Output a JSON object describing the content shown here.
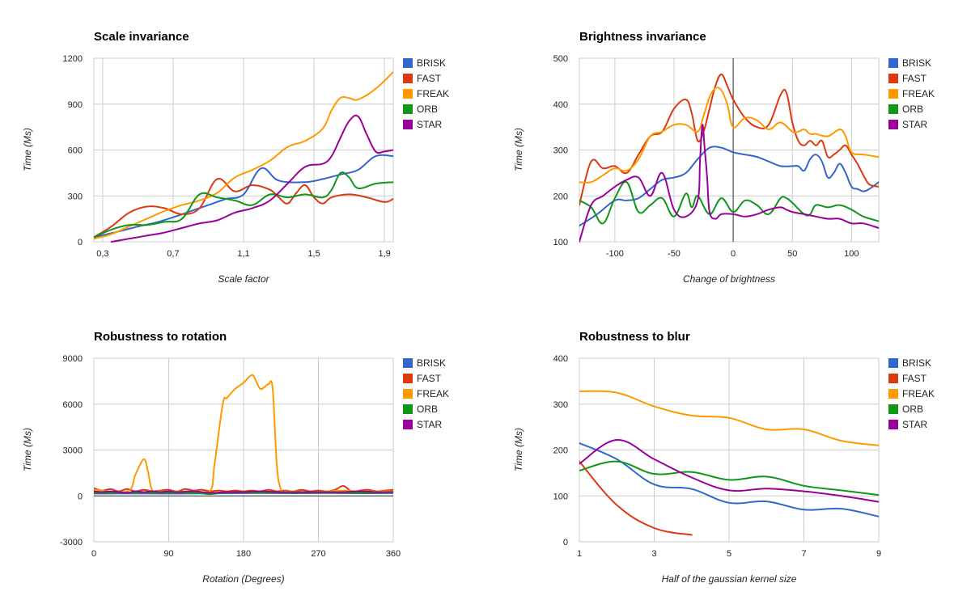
{
  "colors": {
    "BRISK": "#3366cc",
    "FAST": "#dc3912",
    "FREAK": "#ff9900",
    "ORB": "#109618",
    "STAR": "#990099"
  },
  "chart_data": [
    {
      "type": "line",
      "title": "Scale invariance",
      "xlabel": "Scale factor",
      "ylabel": "Time (Ms)",
      "xlim": [
        0.25,
        1.95
      ],
      "ylim": [
        0,
        1200
      ],
      "xticks": [
        0.3,
        0.7,
        1.1,
        1.5,
        1.9
      ],
      "xtick_labels": [
        "0,3",
        "0,7",
        "1,1",
        "1,5",
        "1,9"
      ],
      "yticks": [
        0,
        300,
        600,
        900,
        1200
      ],
      "ytick_labels": [
        "0",
        "300",
        "600",
        "900",
        "1200"
      ],
      "grid": true,
      "legend": "right",
      "series": [
        {
          "name": "BRISK",
          "x": [
            0.25,
            0.4,
            0.5,
            0.6,
            0.7,
            0.8,
            0.9,
            1.0,
            1.1,
            1.2,
            1.3,
            1.45,
            1.55,
            1.65,
            1.75,
            1.85,
            1.95
          ],
          "y": [
            30,
            70,
            100,
            125,
            160,
            200,
            240,
            280,
            310,
            480,
            400,
            390,
            410,
            440,
            470,
            560,
            560
          ]
        },
        {
          "name": "FAST",
          "x": [
            0.25,
            0.35,
            0.45,
            0.55,
            0.65,
            0.75,
            0.85,
            0.95,
            1.05,
            1.15,
            1.25,
            1.3,
            1.35,
            1.4,
            1.45,
            1.5,
            1.55,
            1.6,
            1.7,
            1.8,
            1.9,
            1.95
          ],
          "y": [
            30,
            100,
            190,
            230,
            220,
            180,
            220,
            410,
            330,
            370,
            340,
            290,
            250,
            320,
            370,
            290,
            250,
            290,
            310,
            290,
            260,
            280
          ]
        },
        {
          "name": "FREAK",
          "x": [
            0.25,
            0.35,
            0.45,
            0.55,
            0.65,
            0.75,
            0.85,
            0.95,
            1.05,
            1.15,
            1.25,
            1.35,
            1.45,
            1.55,
            1.6,
            1.65,
            1.7,
            1.75,
            1.85,
            1.95
          ],
          "y": [
            20,
            50,
            100,
            150,
            200,
            240,
            270,
            320,
            420,
            470,
            530,
            620,
            660,
            740,
            860,
            940,
            940,
            930,
            1000,
            1110
          ]
        },
        {
          "name": "ORB",
          "x": [
            0.25,
            0.35,
            0.45,
            0.55,
            0.65,
            0.75,
            0.85,
            0.95,
            1.05,
            1.15,
            1.25,
            1.35,
            1.45,
            1.55,
            1.6,
            1.65,
            1.7,
            1.75,
            1.85,
            1.95
          ],
          "y": [
            30,
            80,
            110,
            110,
            130,
            150,
            310,
            290,
            270,
            240,
            310,
            290,
            310,
            290,
            340,
            450,
            420,
            350,
            380,
            390
          ]
        },
        {
          "name": "STAR",
          "x": [
            0.35,
            0.45,
            0.55,
            0.65,
            0.75,
            0.85,
            0.95,
            1.05,
            1.15,
            1.25,
            1.35,
            1.45,
            1.55,
            1.6,
            1.65,
            1.7,
            1.75,
            1.8,
            1.85,
            1.9,
            1.95
          ],
          "y": [
            0,
            20,
            40,
            60,
            90,
            120,
            140,
            190,
            220,
            270,
            380,
            490,
            510,
            560,
            680,
            790,
            820,
            700,
            590,
            590,
            600
          ]
        }
      ]
    },
    {
      "type": "line",
      "title": "Brightness invariance",
      "xlabel": "Change of brightness",
      "ylabel": "Time (Ms)",
      "xlim": [
        -130,
        123
      ],
      "ylim": [
        100,
        500
      ],
      "xticks": [
        -100,
        -50,
        0,
        50,
        100
      ],
      "xtick_labels": [
        "-100",
        "-50",
        "0",
        "50",
        "100"
      ],
      "yticks": [
        100,
        200,
        300,
        400,
        500
      ],
      "ytick_labels": [
        "100",
        "200",
        "300",
        "400",
        "500"
      ],
      "grid": true,
      "legend": "right",
      "series": [
        {
          "name": "BRISK",
          "x": [
            -130,
            -115,
            -100,
            -90,
            -80,
            -70,
            -60,
            -50,
            -40,
            -30,
            -20,
            -10,
            0,
            10,
            20,
            30,
            40,
            50,
            55,
            60,
            65,
            70,
            75,
            80,
            85,
            90,
            95,
            100,
            105,
            110,
            115,
            123
          ],
          "y": [
            135,
            160,
            190,
            190,
            195,
            215,
            235,
            240,
            250,
            280,
            305,
            305,
            295,
            290,
            285,
            275,
            265,
            265,
            265,
            255,
            280,
            290,
            275,
            240,
            250,
            270,
            250,
            220,
            215,
            210,
            215,
            230
          ]
        },
        {
          "name": "FAST",
          "x": [
            -130,
            -120,
            -110,
            -100,
            -90,
            -80,
            -70,
            -60,
            -50,
            -40,
            -35,
            -30,
            -25,
            -20,
            -15,
            -10,
            -5,
            0,
            10,
            20,
            30,
            40,
            45,
            50,
            55,
            60,
            65,
            70,
            75,
            80,
            85,
            90,
            95,
            100,
            105,
            110,
            115,
            123
          ],
          "y": [
            180,
            275,
            260,
            265,
            250,
            290,
            330,
            340,
            390,
            410,
            380,
            320,
            340,
            390,
            440,
            465,
            440,
            410,
            370,
            350,
            355,
            420,
            425,
            360,
            320,
            310,
            320,
            310,
            320,
            285,
            290,
            300,
            310,
            290,
            270,
            245,
            225,
            220
          ]
        },
        {
          "name": "FREAK",
          "x": [
            -130,
            -120,
            -110,
            -100,
            -90,
            -80,
            -70,
            -60,
            -50,
            -40,
            -30,
            -25,
            -20,
            -15,
            -10,
            -5,
            0,
            10,
            20,
            30,
            40,
            50,
            55,
            60,
            65,
            70,
            80,
            90,
            95,
            100,
            110,
            123
          ],
          "y": [
            230,
            230,
            245,
            260,
            255,
            280,
            330,
            340,
            355,
            355,
            340,
            375,
            415,
            435,
            430,
            400,
            350,
            370,
            365,
            345,
            360,
            340,
            340,
            345,
            335,
            335,
            330,
            345,
            330,
            295,
            290,
            285
          ]
        },
        {
          "name": "ORB",
          "x": [
            -130,
            -120,
            -110,
            -100,
            -90,
            -80,
            -70,
            -60,
            -50,
            -40,
            -35,
            -30,
            -20,
            -10,
            0,
            10,
            20,
            30,
            40,
            45,
            50,
            60,
            65,
            70,
            80,
            90,
            100,
            110,
            123
          ],
          "y": [
            190,
            175,
            140,
            195,
            230,
            165,
            180,
            195,
            155,
            205,
            175,
            200,
            160,
            195,
            165,
            190,
            180,
            160,
            195,
            195,
            185,
            160,
            160,
            180,
            175,
            180,
            170,
            155,
            145
          ]
        },
        {
          "name": "STAR",
          "x": [
            -130,
            -120,
            -110,
            -100,
            -90,
            -80,
            -70,
            -60,
            -50,
            -40,
            -30,
            -28,
            -26,
            -24,
            -22,
            -20,
            -15,
            -10,
            0,
            10,
            20,
            30,
            40,
            45,
            50,
            60,
            70,
            80,
            90,
            100,
            110,
            123
          ],
          "y": [
            100,
            180,
            200,
            220,
            235,
            240,
            200,
            250,
            170,
            155,
            190,
            280,
            355,
            300,
            240,
            165,
            150,
            160,
            160,
            155,
            160,
            170,
            175,
            170,
            165,
            160,
            155,
            150,
            150,
            140,
            140,
            130
          ]
        }
      ]
    },
    {
      "type": "line",
      "title": "Robustness to rotation",
      "xlabel": "Rotation (Degrees)",
      "ylabel": "Time (Ms)",
      "xlim": [
        0,
        360
      ],
      "ylim": [
        -3000,
        9000
      ],
      "xticks": [
        0,
        90,
        180,
        270,
        360
      ],
      "xtick_labels": [
        "0",
        "90",
        "180",
        "270",
        "360"
      ],
      "yticks": [
        -3000,
        0,
        3000,
        6000,
        9000
      ],
      "ytick_labels": [
        "-3000",
        "0",
        "3000",
        "6000",
        "9000"
      ],
      "grid": true,
      "legend": "right",
      "series": [
        {
          "name": "BRISK",
          "x": [
            0,
            40,
            80,
            120,
            160,
            200,
            240,
            280,
            320,
            360
          ],
          "y": [
            150,
            160,
            150,
            160,
            170,
            180,
            170,
            180,
            170,
            180
          ]
        },
        {
          "name": "FAST",
          "x": [
            0,
            10,
            20,
            30,
            40,
            50,
            60,
            70,
            80,
            90,
            100,
            110,
            120,
            130,
            140,
            150,
            160,
            170,
            180,
            190,
            200,
            210,
            220,
            230,
            240,
            250,
            260,
            270,
            280,
            290,
            300,
            310,
            320,
            330,
            340,
            350,
            360
          ],
          "y": [
            500,
            350,
            450,
            300,
            450,
            300,
            400,
            300,
            350,
            400,
            300,
            450,
            350,
            400,
            300,
            350,
            300,
            350,
            300,
            350,
            300,
            400,
            300,
            350,
            300,
            400,
            300,
            350,
            300,
            400,
            650,
            300,
            350,
            400,
            300,
            350,
            400
          ]
        },
        {
          "name": "FREAK",
          "x": [
            0,
            40,
            50,
            60,
            65,
            70,
            80,
            120,
            140,
            145,
            155,
            160,
            170,
            180,
            190,
            195,
            200,
            205,
            210,
            215,
            220,
            225,
            230,
            240,
            260,
            280,
            300,
            320,
            360
          ],
          "y": [
            400,
            300,
            1400,
            2400,
            1600,
            400,
            300,
            300,
            350,
            2000,
            6000,
            6400,
            7000,
            7400,
            7900,
            7500,
            7000,
            7100,
            7300,
            7000,
            2000,
            400,
            300,
            300,
            250,
            300,
            350,
            300,
            300
          ]
        },
        {
          "name": "ORB",
          "x": [
            0,
            40,
            80,
            120,
            140,
            160,
            200,
            240,
            280,
            320,
            360
          ],
          "y": [
            200,
            220,
            210,
            200,
            120,
            210,
            220,
            200,
            210,
            200,
            210
          ]
        },
        {
          "name": "STAR",
          "x": [
            0,
            10,
            20,
            30,
            40,
            50,
            60,
            70,
            80,
            90,
            100,
            120,
            140,
            160,
            180,
            200,
            220,
            240,
            260,
            280,
            300,
            320,
            340,
            360
          ],
          "y": [
            300,
            250,
            300,
            250,
            200,
            300,
            250,
            300,
            250,
            300,
            250,
            300,
            200,
            250,
            250,
            300,
            250,
            250,
            250,
            250,
            250,
            300,
            250,
            250
          ]
        }
      ]
    },
    {
      "type": "line",
      "title": "Robustness to blur",
      "xlabel": "Half of the gaussian kernel size",
      "ylabel": "Time (Ms)",
      "xlim": [
        1,
        9
      ],
      "ylim": [
        0,
        400
      ],
      "xticks": [
        1,
        3,
        5,
        7,
        9
      ],
      "xtick_labels": [
        "1",
        "3",
        "5",
        "7",
        "9"
      ],
      "yticks": [
        0,
        100,
        200,
        300,
        400
      ],
      "ytick_labels": [
        "0",
        "100",
        "200",
        "300",
        "400"
      ],
      "grid": true,
      "legend": "right",
      "series": [
        {
          "name": "BRISK",
          "x": [
            1,
            2,
            3,
            4,
            5,
            6,
            7,
            8,
            9
          ],
          "y": [
            215,
            180,
            125,
            115,
            85,
            88,
            70,
            72,
            55
          ]
        },
        {
          "name": "FAST",
          "x": [
            1,
            2,
            3,
            4
          ],
          "y": [
            175,
            80,
            30,
            15
          ]
        },
        {
          "name": "FREAK",
          "x": [
            1,
            2,
            3,
            4,
            5,
            6,
            7,
            8,
            9
          ],
          "y": [
            328,
            325,
            295,
            275,
            270,
            245,
            245,
            220,
            210
          ]
        },
        {
          "name": "ORB",
          "x": [
            1,
            2,
            3,
            4,
            5,
            6,
            7,
            8,
            9
          ],
          "y": [
            155,
            175,
            148,
            152,
            135,
            142,
            122,
            112,
            102
          ]
        },
        {
          "name": "STAR",
          "x": [
            1,
            2,
            3,
            4,
            5,
            6,
            7,
            8,
            9
          ],
          "y": [
            170,
            222,
            180,
            140,
            112,
            116,
            110,
            100,
            87
          ]
        }
      ]
    }
  ]
}
